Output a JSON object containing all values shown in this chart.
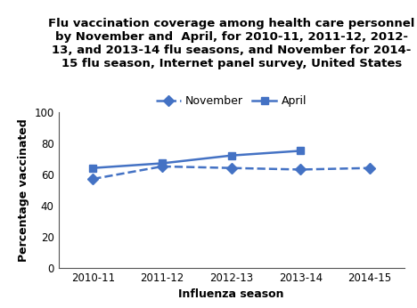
{
  "seasons": [
    "2010-11",
    "2011-12",
    "2012-13",
    "2013-14",
    "2014-15"
  ],
  "november_values": [
    57,
    65,
    64,
    63,
    64
  ],
  "april_values": [
    64,
    67,
    72,
    75
  ],
  "april_seasons_idx": [
    0,
    1,
    2,
    3
  ],
  "line_color": "#4472C4",
  "ylim": [
    0,
    100
  ],
  "yticks": [
    0,
    20,
    40,
    60,
    80,
    100
  ],
  "ylabel": "Percentage vaccinated",
  "xlabel": "Influenza season",
  "title": "Flu vaccination coverage among health care personnel\nby November and  April, for 2010-11, 2011-12, 2012-\n13, and 2013-14 flu seasons, and November for 2014-\n15 flu season, Internet panel survey, United States",
  "legend_november": "November",
  "legend_april": "April",
  "title_fontsize": 9.5,
  "axis_label_fontsize": 9,
  "tick_fontsize": 8.5,
  "legend_fontsize": 9
}
